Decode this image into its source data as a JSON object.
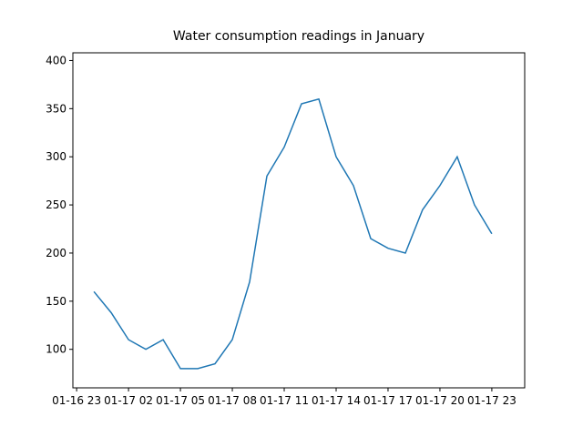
{
  "chart_data": {
    "type": "line",
    "title": "Water consumption readings in January",
    "x": [
      "01-17 00",
      "01-17 01",
      "01-17 02",
      "01-17 03",
      "01-17 04",
      "01-17 05",
      "01-17 06",
      "01-17 07",
      "01-17 08",
      "01-17 09",
      "01-17 10",
      "01-17 11",
      "01-17 12",
      "01-17 13",
      "01-17 14",
      "01-17 15",
      "01-17 16",
      "01-17 17",
      "01-17 18",
      "01-17 19",
      "01-17 20",
      "01-17 21",
      "01-17 22",
      "01-17 23"
    ],
    "series": [
      {
        "color": "#1f77b4",
        "values": [
          160,
          138,
          110,
          100,
          110,
          80,
          80,
          85,
          110,
          170,
          280,
          310,
          355,
          360,
          300,
          270,
          215,
          205,
          200,
          245,
          270,
          300,
          250,
          220
        ]
      }
    ],
    "xlim": [
      "01-16 22:47",
      "01-18 00:54"
    ],
    "xticks": [
      "01-16 23",
      "01-17 02",
      "01-17 05",
      "01-17 08",
      "01-17 11",
      "01-17 14",
      "01-17 17",
      "01-17 20",
      "01-17 23"
    ],
    "ylim": [
      60,
      408
    ],
    "yticks": [
      100,
      150,
      200,
      250,
      300,
      350,
      400
    ]
  }
}
